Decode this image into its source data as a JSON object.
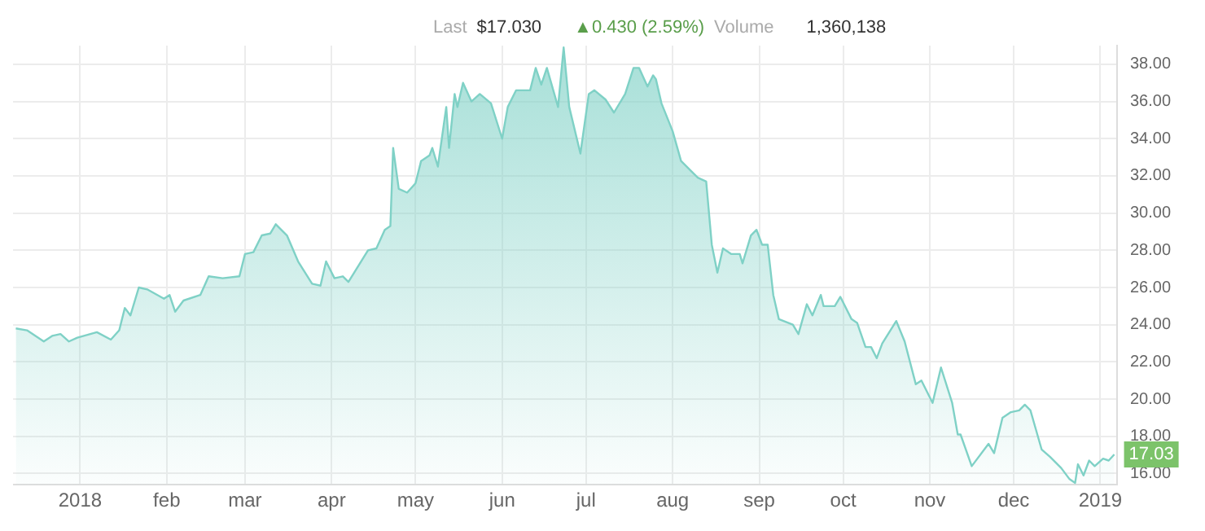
{
  "chart_data": {
    "type": "area",
    "annotations": [
      "Last",
      "$17.030",
      "▲0.430 (2.59%)",
      "Volume",
      "1,360,138",
      {
        "text": "17.03",
        "x": "2019-01-06",
        "y": 17.03
      }
    ],
    "x": [
      "2017-12-09",
      "2017-12-13",
      "2017-12-19",
      "2017-12-22",
      "2017-12-25",
      "2017-12-28",
      "2017-12-31",
      "2018-01-07",
      "2018-01-12",
      "2018-01-15",
      "2018-01-17",
      "2018-01-19",
      "2018-01-22",
      "2018-01-25",
      "2018-01-31",
      "2018-02-02",
      "2018-02-04",
      "2018-02-07",
      "2018-02-13",
      "2018-02-16",
      "2018-02-21",
      "2018-02-27",
      "2018-03-01",
      "2018-03-04",
      "2018-03-07",
      "2018-03-10",
      "2018-03-12",
      "2018-03-16",
      "2018-03-20",
      "2018-03-25",
      "2018-03-28",
      "2018-03-30",
      "2018-04-02",
      "2018-04-05",
      "2018-04-07",
      "2018-04-14",
      "2018-04-17",
      "2018-04-20",
      "2018-04-22",
      "2018-04-23",
      "2018-04-25",
      "2018-04-28",
      "2018-05-01",
      "2018-05-03",
      "2018-05-06",
      "2018-05-07",
      "2018-05-09",
      "2018-05-12",
      "2018-05-13",
      "2018-05-15",
      "2018-05-16",
      "2018-05-18",
      "2018-05-21",
      "2018-05-24",
      "2018-05-28",
      "2018-06-01",
      "2018-06-03",
      "2018-06-06",
      "2018-06-11",
      "2018-06-13",
      "2018-06-15",
      "2018-06-17",
      "2018-06-21",
      "2018-06-23",
      "2018-06-25",
      "2018-06-29",
      "2018-07-02",
      "2018-07-04",
      "2018-07-08",
      "2018-07-11",
      "2018-07-15",
      "2018-07-18",
      "2018-07-20",
      "2018-07-23",
      "2018-07-25",
      "2018-07-26",
      "2018-07-28",
      "2018-08-01",
      "2018-08-04",
      "2018-08-08",
      "2018-08-10",
      "2018-08-13",
      "2018-08-15",
      "2018-08-17",
      "2018-08-19",
      "2018-08-22",
      "2018-08-25",
      "2018-08-26",
      "2018-08-29",
      "2018-08-31",
      "2018-09-02",
      "2018-09-04",
      "2018-09-06",
      "2018-09-08",
      "2018-09-13",
      "2018-09-15",
      "2018-09-18",
      "2018-09-20",
      "2018-09-23",
      "2018-09-24",
      "2018-09-28",
      "2018-09-30",
      "2018-10-04",
      "2018-10-06",
      "2018-10-09",
      "2018-10-11",
      "2018-10-13",
      "2018-10-15",
      "2018-10-20",
      "2018-10-23",
      "2018-10-27",
      "2018-10-29",
      "2018-11-02",
      "2018-11-05",
      "2018-11-09",
      "2018-11-11",
      "2018-11-12",
      "2018-11-16",
      "2018-11-22",
      "2018-11-24",
      "2018-11-27",
      "2018-11-30",
      "2018-12-03",
      "2018-12-05",
      "2018-12-07",
      "2018-12-11",
      "2018-12-14",
      "2018-12-18",
      "2018-12-21",
      "2018-12-23",
      "2018-12-24",
      "2018-12-26",
      "2018-12-28",
      "2018-12-30",
      "2019-01-02",
      "2019-01-04",
      "2019-01-06"
    ],
    "series": [
      {
        "color": "#7fd1c6",
        "values": [
          23.8,
          23.7,
          23.1,
          23.4,
          23.5,
          23.1,
          23.3,
          23.6,
          23.2,
          23.7,
          24.9,
          24.5,
          26.0,
          25.9,
          25.4,
          25.6,
          24.7,
          25.3,
          25.6,
          26.6,
          26.5,
          26.6,
          27.8,
          27.9,
          28.8,
          28.9,
          29.4,
          28.8,
          27.4,
          26.2,
          26.1,
          27.4,
          26.5,
          26.6,
          26.3,
          28.0,
          28.1,
          29.1,
          29.3,
          33.5,
          31.3,
          31.1,
          31.6,
          32.8,
          33.1,
          33.5,
          32.5,
          35.7,
          33.5,
          36.4,
          35.7,
          37.0,
          36.0,
          36.4,
          35.9,
          34.0,
          35.7,
          36.6,
          36.6,
          37.8,
          36.9,
          37.8,
          35.7,
          38.9,
          35.7,
          33.2,
          36.4,
          36.6,
          36.1,
          35.4,
          36.4,
          37.8,
          37.8,
          36.8,
          37.4,
          37.2,
          35.9,
          34.4,
          32.8,
          32.2,
          31.9,
          31.7,
          28.3,
          26.8,
          28.1,
          27.8,
          27.8,
          27.3,
          28.8,
          29.1,
          28.3,
          28.3,
          25.6,
          24.3,
          24.0,
          23.5,
          25.1,
          24.5,
          25.6,
          25.0,
          25.0,
          25.5,
          24.3,
          24.1,
          22.8,
          22.8,
          22.2,
          23.0,
          24.2,
          23.1,
          20.8,
          21.0,
          19.8,
          21.7,
          19.8,
          18.1,
          18.1,
          16.4,
          17.6,
          17.1,
          19.0,
          19.3,
          19.4,
          19.7,
          19.4,
          17.3,
          16.9,
          16.3,
          15.7,
          15.5,
          16.5,
          15.9,
          16.7,
          16.4,
          16.8,
          16.7,
          17.03
        ]
      }
    ],
    "xlim": [
      "2017-12-08",
      "2019-01-07"
    ],
    "xticks": [
      {
        "value": "2018-01-01",
        "label": "2018"
      },
      {
        "value": "2018-02-01",
        "label": "feb"
      },
      {
        "value": "2018-03-01",
        "label": "mar"
      },
      {
        "value": "2018-04-01",
        "label": "apr"
      },
      {
        "value": "2018-05-01",
        "label": "may"
      },
      {
        "value": "2018-06-01",
        "label": "jun"
      },
      {
        "value": "2018-07-01",
        "label": "jul"
      },
      {
        "value": "2018-08-01",
        "label": "aug"
      },
      {
        "value": "2018-09-01",
        "label": "sep"
      },
      {
        "value": "2018-10-01",
        "label": "oct"
      },
      {
        "value": "2018-11-01",
        "label": "nov"
      },
      {
        "value": "2018-12-01",
        "label": "dec"
      },
      {
        "value": "2019-01-01",
        "label": "2019"
      }
    ],
    "ylim": [
      15.4,
      39.0
    ],
    "yticks": [
      {
        "value": 16,
        "label": "16.00"
      },
      {
        "value": 18,
        "label": "18.00"
      },
      {
        "value": 20,
        "label": "20.00"
      },
      {
        "value": 22,
        "label": "22.00"
      },
      {
        "value": 24,
        "label": "24.00"
      },
      {
        "value": 26,
        "label": "26.00"
      },
      {
        "value": 28,
        "label": "28.00"
      },
      {
        "value": 30,
        "label": "30.00"
      },
      {
        "value": 32,
        "label": "32.00"
      },
      {
        "value": 34,
        "label": "34.00"
      },
      {
        "value": 36,
        "label": "36.00"
      },
      {
        "value": 38,
        "label": "38.00"
      }
    ],
    "grid": true,
    "legend": false,
    "marker": "none",
    "line_style": "solid"
  }
}
